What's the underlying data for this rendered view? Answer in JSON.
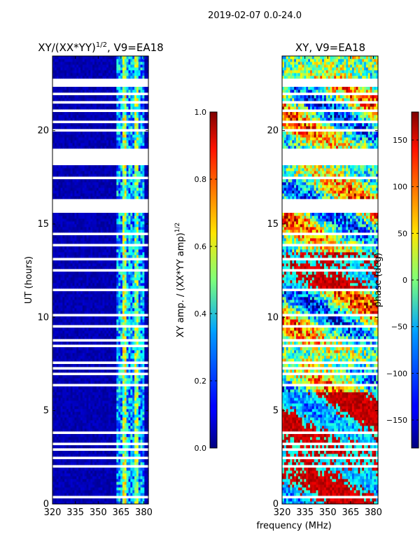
{
  "suptitle": "2019-02-07 0.0-24.0",
  "xlabel": "frequency (MHz)",
  "chart_data": [
    {
      "type": "heatmap",
      "title_main": "XY/(XX*YY)",
      "title_sup": "1/2",
      "title_rest": ", V9=EA18",
      "ylabel": "UT (hours)",
      "x_ticks": [
        "320",
        "335",
        "350",
        "365",
        "380"
      ],
      "x_tick_values": [
        320,
        335,
        350,
        365,
        380
      ],
      "xlim": [
        320,
        383
      ],
      "y_ticks": [
        "0",
        "5",
        "10",
        "15",
        "20"
      ],
      "y_tick_values": [
        0,
        5,
        10,
        15,
        20
      ],
      "ylim": [
        0,
        24
      ],
      "colorbar": {
        "label_main": "XY amp. / (XX*YY amp)",
        "label_sup": "1/2",
        "ticks": [
          "0.0",
          "0.2",
          "0.4",
          "0.6",
          "0.8",
          "1.0"
        ],
        "tick_values": [
          0.0,
          0.2,
          0.4,
          0.6,
          0.8,
          1.0
        ],
        "range": [
          0.0,
          1.0
        ]
      }
    },
    {
      "type": "heatmap",
      "title_main": "XY, V9=EA18",
      "title_sup": "",
      "title_rest": "",
      "x_ticks": [
        "320",
        "335",
        "350",
        "365",
        "380"
      ],
      "x_tick_values": [
        320,
        335,
        350,
        365,
        380
      ],
      "xlim": [
        320,
        383
      ],
      "y_ticks": [
        "0",
        "5",
        "10",
        "15",
        "20"
      ],
      "y_tick_values": [
        0,
        5,
        10,
        15,
        20
      ],
      "ylim": [
        0,
        24
      ],
      "colorbar": {
        "label_main": "phase (deg)",
        "label_sup": "",
        "ticks": [
          "−150",
          "−100",
          "−50",
          "0",
          "50",
          "100",
          "150"
        ],
        "tick_values": [
          -150,
          -100,
          -50,
          0,
          50,
          100,
          150
        ],
        "range": [
          -180,
          180
        ]
      }
    }
  ],
  "flagged_ut_ranges": [
    [
      0.3,
      0.4
    ],
    [
      0.75,
      0.8
    ],
    [
      1.45,
      1.5
    ],
    [
      1.95,
      2.15
    ],
    [
      2.45,
      2.55
    ],
    [
      2.85,
      3.0
    ],
    [
      3.15,
      3.25
    ],
    [
      3.45,
      3.5
    ],
    [
      3.75,
      3.85
    ],
    [
      4.15,
      4.2
    ],
    [
      4.45,
      4.5
    ],
    [
      5.8,
      5.9
    ],
    [
      6.25,
      6.45
    ],
    [
      6.9,
      7.05
    ],
    [
      7.2,
      7.35
    ],
    [
      7.55,
      7.7
    ],
    [
      7.9,
      8.0
    ],
    [
      8.35,
      8.5
    ],
    [
      8.75,
      8.85
    ],
    [
      9.45,
      9.6
    ],
    [
      10.05,
      10.2
    ],
    [
      10.75,
      10.85
    ],
    [
      11.35,
      11.5
    ],
    [
      12.45,
      12.55
    ],
    [
      13.1,
      13.2
    ],
    [
      13.85,
      13.95
    ],
    [
      14.45,
      14.6
    ],
    [
      15.1,
      15.2
    ],
    [
      15.65,
      16.3
    ],
    [
      16.75,
      16.85
    ],
    [
      17.4,
      17.5
    ],
    [
      17.95,
      18.05
    ],
    [
      18.2,
      19.05
    ],
    [
      19.95,
      20.05
    ],
    [
      20.45,
      20.55
    ],
    [
      20.95,
      21.2
    ],
    [
      21.45,
      21.6
    ],
    [
      21.95,
      22.1
    ],
    [
      22.35,
      22.75
    ],
    [
      23.4,
      23.45
    ]
  ]
}
